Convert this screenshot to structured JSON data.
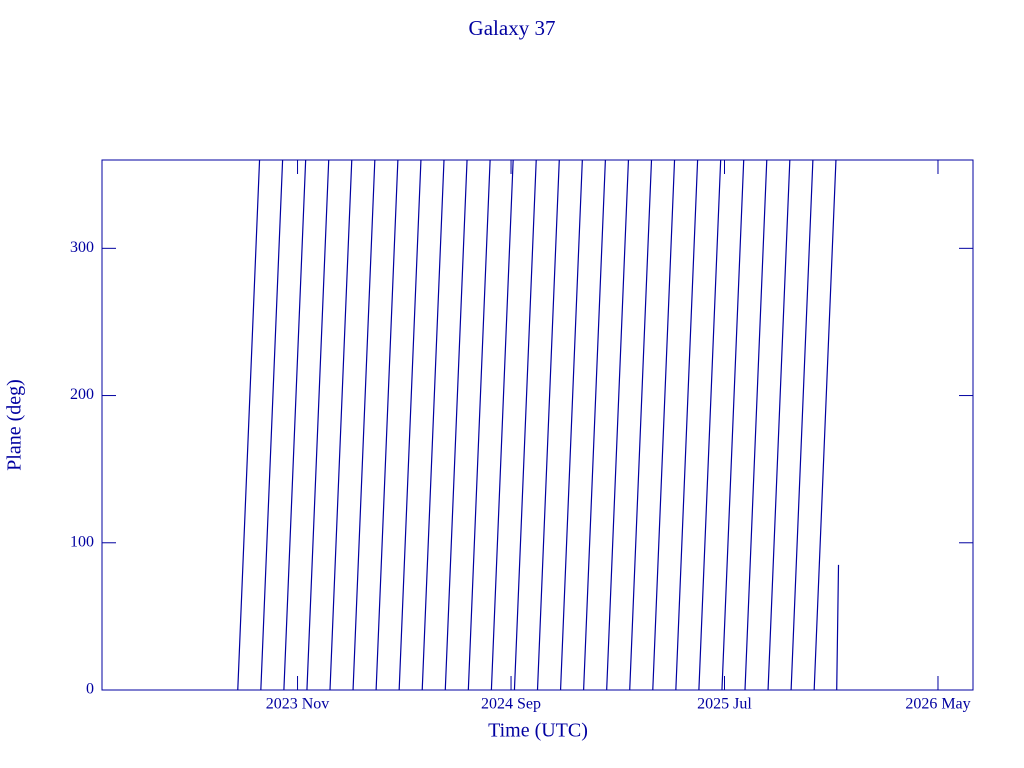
{
  "chart_data": {
    "type": "line",
    "title": "Galaxy 37",
    "x_label": "Time (UTC)",
    "y_label": "Plane (deg)",
    "color": "#0000a0",
    "xlim": [
      2023.07,
      2026.47
    ],
    "xticks": [
      {
        "value": 2023.8333,
        "label": "2023 Nov"
      },
      {
        "value": 2024.6667,
        "label": "2024 Sep"
      },
      {
        "value": 2025.5,
        "label": "2025 Jul"
      },
      {
        "value": 2026.3333,
        "label": "2026 May"
      }
    ],
    "ylim": [
      0,
      360
    ],
    "yticks": [
      0,
      100,
      200,
      300
    ],
    "x": [
      2023.6,
      2023.685,
      2023.687,
      2023.69,
      2023.775,
      2023.777,
      2023.78,
      2023.865,
      2023.867,
      2023.87,
      2023.955,
      2023.957,
      2023.96,
      2024.045,
      2024.047,
      2024.05,
      2024.135,
      2024.137,
      2024.14,
      2024.225,
      2024.227,
      2024.23,
      2024.315,
      2024.317,
      2024.32,
      2024.405,
      2024.407,
      2024.41,
      2024.495,
      2024.497,
      2024.5,
      2024.585,
      2024.587,
      2024.59,
      2024.675,
      2024.677,
      2024.68,
      2024.765,
      2024.767,
      2024.77,
      2024.855,
      2024.857,
      2024.86,
      2024.945,
      2024.947,
      2024.95,
      2025.035,
      2025.037,
      2025.04,
      2025.125,
      2025.127,
      2025.13,
      2025.215,
      2025.217,
      2025.22,
      2025.305,
      2025.307,
      2025.31,
      2025.395,
      2025.397,
      2025.4,
      2025.485,
      2025.487,
      2025.49,
      2025.575,
      2025.577,
      2025.58,
      2025.665,
      2025.667,
      2025.67,
      2025.755,
      2025.757,
      2025.76,
      2025.845,
      2025.847,
      2025.85,
      2025.935,
      2025.937,
      2025.938,
      2025.945
    ],
    "values": [
      0,
      360,
      null,
      0,
      360,
      null,
      0,
      360,
      null,
      0,
      360,
      null,
      0,
      360,
      null,
      0,
      360,
      null,
      0,
      360,
      null,
      0,
      360,
      null,
      0,
      360,
      null,
      0,
      360,
      null,
      0,
      360,
      null,
      0,
      360,
      null,
      0,
      360,
      null,
      0,
      360,
      null,
      0,
      360,
      null,
      0,
      360,
      null,
      0,
      360,
      null,
      0,
      360,
      null,
      0,
      360,
      null,
      0,
      360,
      null,
      0,
      360,
      null,
      0,
      360,
      null,
      0,
      360,
      null,
      0,
      360,
      null,
      0,
      360,
      null,
      0,
      360,
      null,
      0,
      85
    ]
  }
}
